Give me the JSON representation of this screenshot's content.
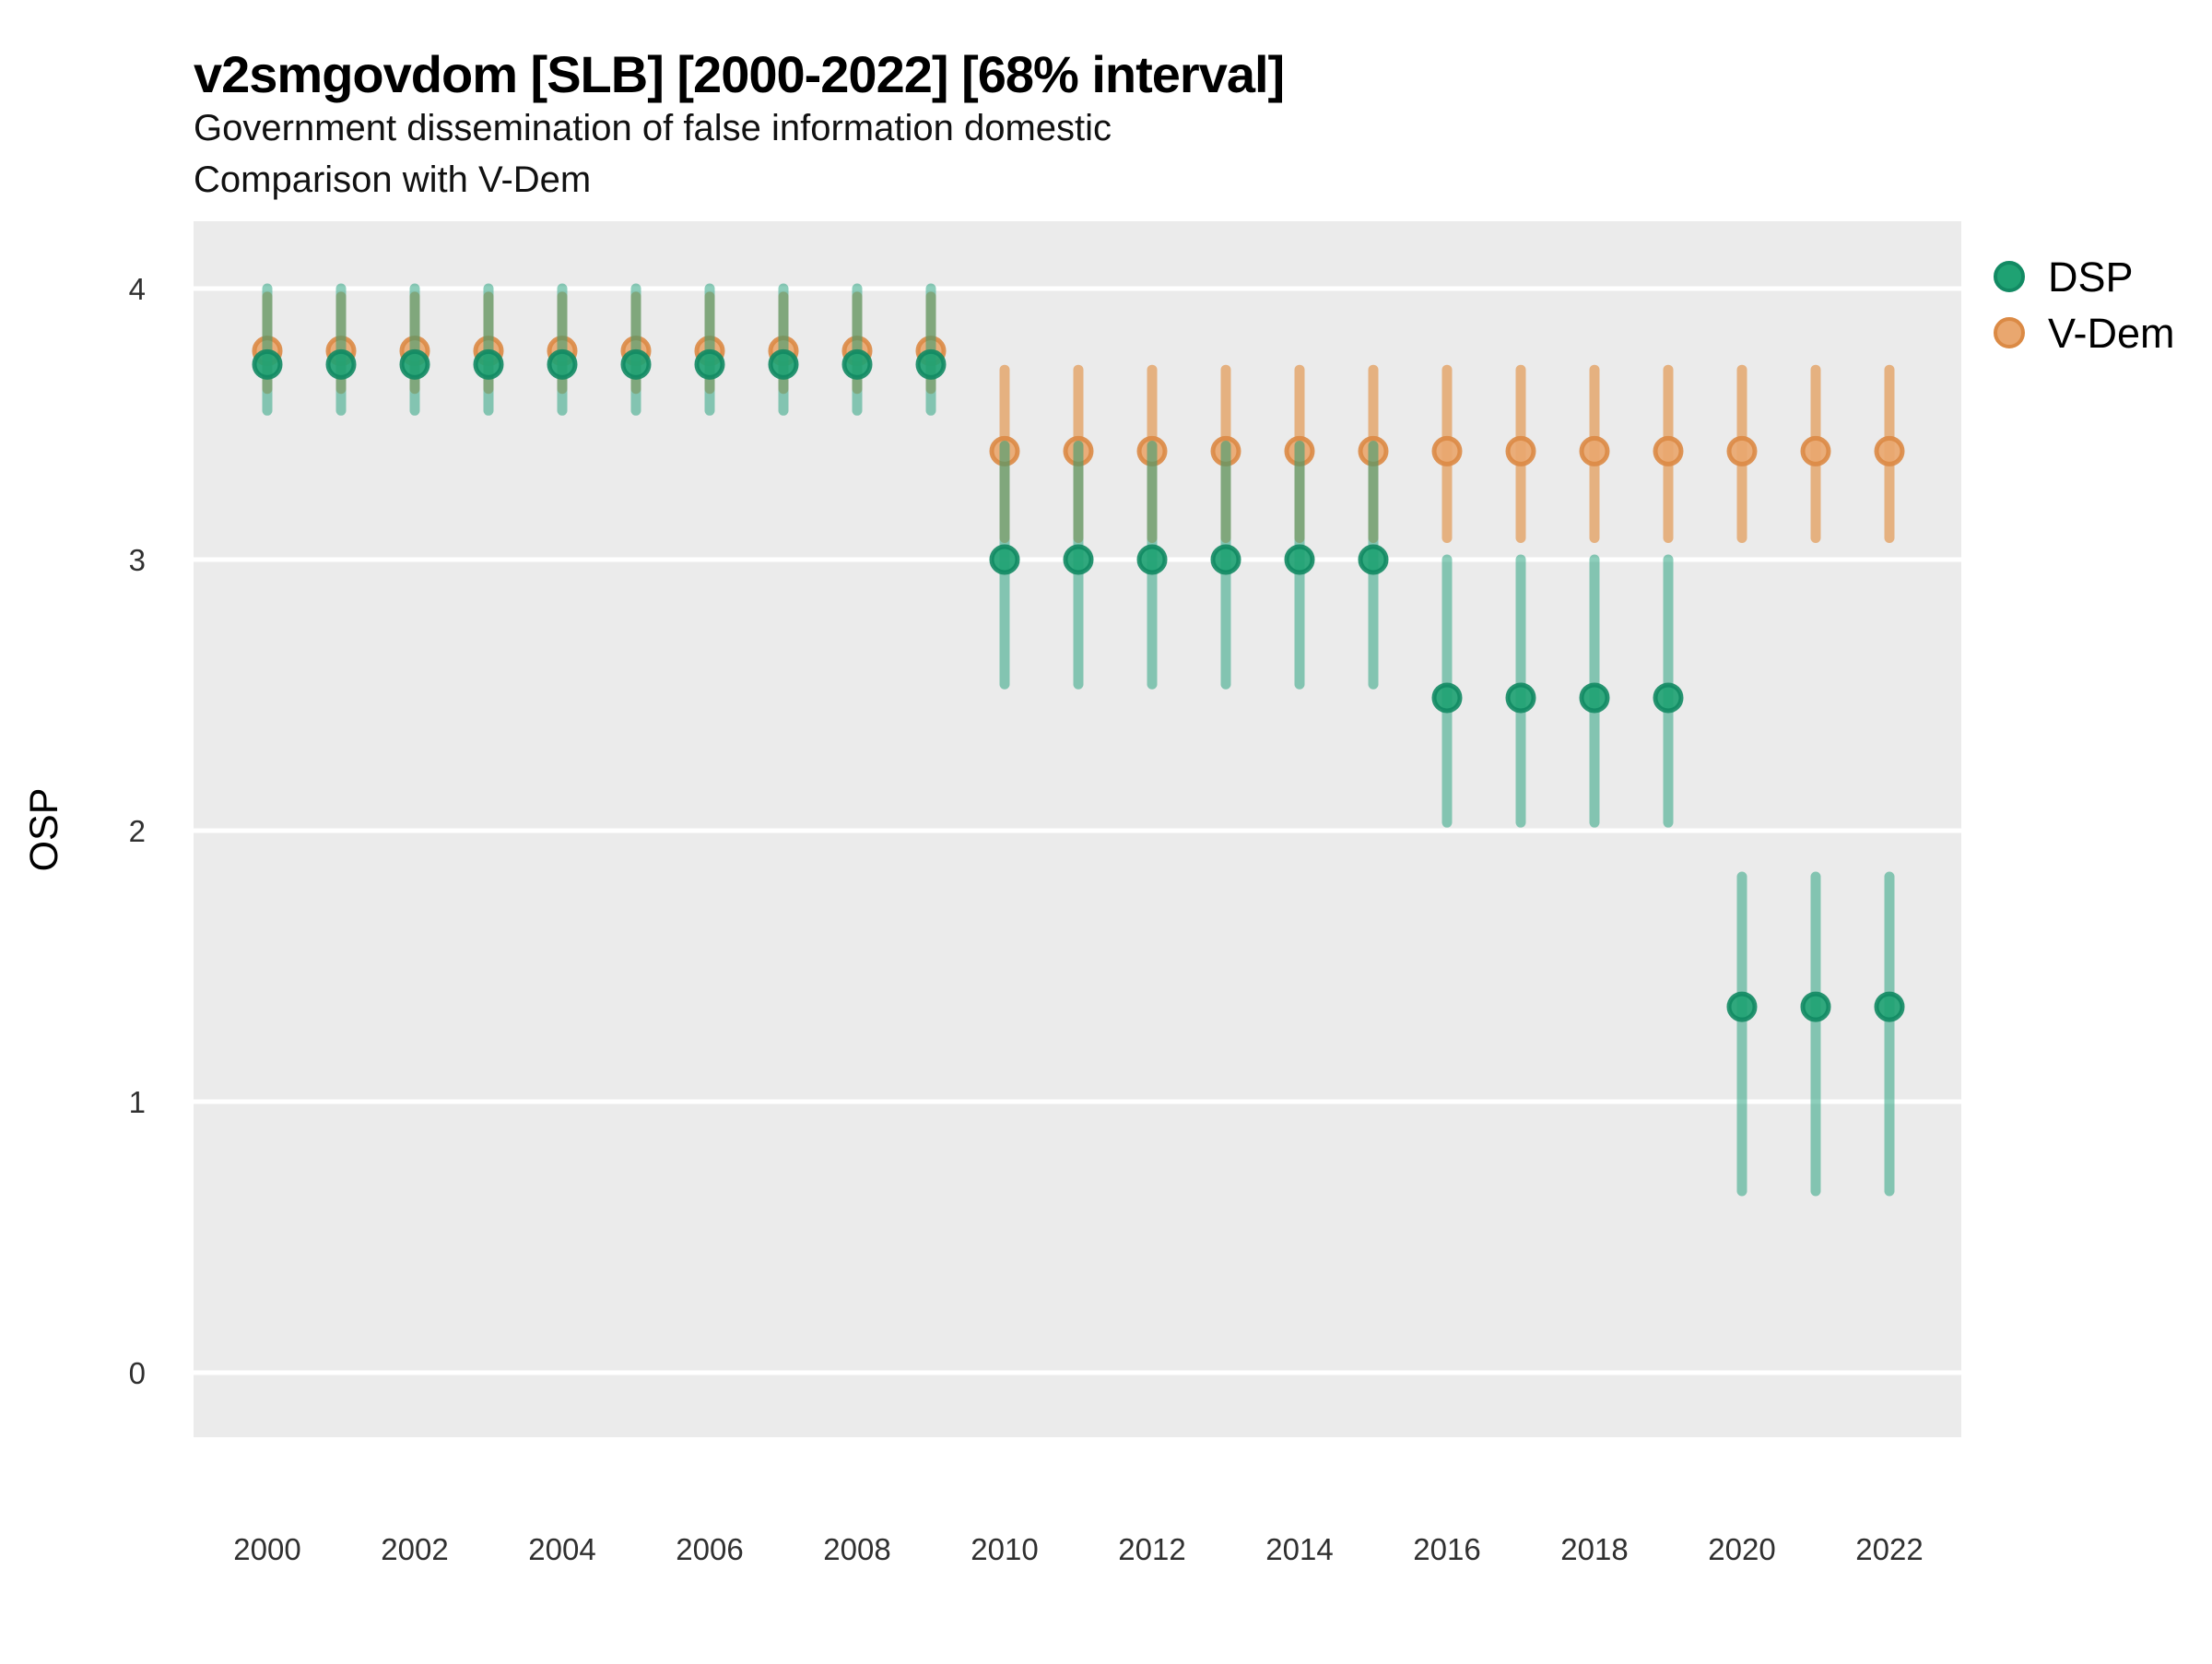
{
  "chart_data": {
    "type": "pointrange",
    "title": "v2smgovdom [SLB] [2000-2022] [68% interval]",
    "subtitle": [
      "Government dissemination of false information domestic",
      "Comparison with V-Dem"
    ],
    "ylabel": "OSP",
    "xlabel": "",
    "interval_level": "68%",
    "ylim": [
      -0.25,
      4.25
    ],
    "yticks": [
      0,
      1,
      2,
      3,
      4
    ],
    "xticks": [
      2000,
      2002,
      2004,
      2006,
      2008,
      2010,
      2012,
      2014,
      2016,
      2018,
      2020,
      2022
    ],
    "grid": "major-horizontal-only",
    "legend_position": "right-top",
    "panel_bg": "#EBEBEB",
    "grid_color": "#FFFFFF",
    "legend": [
      {
        "label": "DSP",
        "marker_fill": "#1FA273",
        "marker_stroke": "#128A63"
      },
      {
        "label": "V-Dem",
        "marker_fill": "#E9A76F",
        "marker_stroke": "#DB8A45"
      }
    ],
    "series": [
      {
        "name": "DSP",
        "point_fill": "#1FA273",
        "point_stroke": "#128A63",
        "bar_color": "rgba(27,158,119,0.5)",
        "points": [
          {
            "year": 2000,
            "value": 3.72,
            "lower": 3.55,
            "upper": 4.0
          },
          {
            "year": 2001,
            "value": 3.72,
            "lower": 3.55,
            "upper": 4.0
          },
          {
            "year": 2002,
            "value": 3.72,
            "lower": 3.55,
            "upper": 4.0
          },
          {
            "year": 2003,
            "value": 3.72,
            "lower": 3.55,
            "upper": 4.0
          },
          {
            "year": 2004,
            "value": 3.72,
            "lower": 3.55,
            "upper": 4.0
          },
          {
            "year": 2005,
            "value": 3.72,
            "lower": 3.55,
            "upper": 4.0
          },
          {
            "year": 2006,
            "value": 3.72,
            "lower": 3.55,
            "upper": 4.0
          },
          {
            "year": 2007,
            "value": 3.72,
            "lower": 3.55,
            "upper": 4.0
          },
          {
            "year": 2008,
            "value": 3.72,
            "lower": 3.55,
            "upper": 4.0
          },
          {
            "year": 2009,
            "value": 3.72,
            "lower": 3.55,
            "upper": 4.0
          },
          {
            "year": 2010,
            "value": 3.0,
            "lower": 2.54,
            "upper": 3.42
          },
          {
            "year": 2011,
            "value": 3.0,
            "lower": 2.54,
            "upper": 3.42
          },
          {
            "year": 2012,
            "value": 3.0,
            "lower": 2.54,
            "upper": 3.42
          },
          {
            "year": 2013,
            "value": 3.0,
            "lower": 2.54,
            "upper": 3.42
          },
          {
            "year": 2014,
            "value": 3.0,
            "lower": 2.54,
            "upper": 3.42
          },
          {
            "year": 2015,
            "value": 3.0,
            "lower": 2.54,
            "upper": 3.42
          },
          {
            "year": 2016,
            "value": 2.49,
            "lower": 2.03,
            "upper": 3.0
          },
          {
            "year": 2017,
            "value": 2.49,
            "lower": 2.03,
            "upper": 3.0
          },
          {
            "year": 2018,
            "value": 2.49,
            "lower": 2.03,
            "upper": 3.0
          },
          {
            "year": 2019,
            "value": 2.49,
            "lower": 2.03,
            "upper": 3.0
          },
          {
            "year": 2020,
            "value": 1.35,
            "lower": 0.67,
            "upper": 1.83
          },
          {
            "year": 2021,
            "value": 1.35,
            "lower": 0.67,
            "upper": 1.83
          },
          {
            "year": 2022,
            "value": 1.35,
            "lower": 0.67,
            "upper": 1.83
          }
        ]
      },
      {
        "name": "V-Dem",
        "point_fill": "#E9A76F",
        "point_stroke": "#DB8A45",
        "bar_color": "rgba(224,130,40,0.55)",
        "points": [
          {
            "year": 2000,
            "value": 3.77,
            "lower": 3.63,
            "upper": 3.97
          },
          {
            "year": 2001,
            "value": 3.77,
            "lower": 3.63,
            "upper": 3.97
          },
          {
            "year": 2002,
            "value": 3.77,
            "lower": 3.63,
            "upper": 3.97
          },
          {
            "year": 2003,
            "value": 3.77,
            "lower": 3.63,
            "upper": 3.97
          },
          {
            "year": 2004,
            "value": 3.77,
            "lower": 3.63,
            "upper": 3.97
          },
          {
            "year": 2005,
            "value": 3.77,
            "lower": 3.63,
            "upper": 3.97
          },
          {
            "year": 2006,
            "value": 3.77,
            "lower": 3.63,
            "upper": 3.97
          },
          {
            "year": 2007,
            "value": 3.77,
            "lower": 3.63,
            "upper": 3.97
          },
          {
            "year": 2008,
            "value": 3.77,
            "lower": 3.63,
            "upper": 3.97
          },
          {
            "year": 2009,
            "value": 3.77,
            "lower": 3.63,
            "upper": 3.97
          },
          {
            "year": 2010,
            "value": 3.4,
            "lower": 3.08,
            "upper": 3.7
          },
          {
            "year": 2011,
            "value": 3.4,
            "lower": 3.08,
            "upper": 3.7
          },
          {
            "year": 2012,
            "value": 3.4,
            "lower": 3.08,
            "upper": 3.7
          },
          {
            "year": 2013,
            "value": 3.4,
            "lower": 3.08,
            "upper": 3.7
          },
          {
            "year": 2014,
            "value": 3.4,
            "lower": 3.08,
            "upper": 3.7
          },
          {
            "year": 2015,
            "value": 3.4,
            "lower": 3.08,
            "upper": 3.7
          },
          {
            "year": 2016,
            "value": 3.4,
            "lower": 3.08,
            "upper": 3.7
          },
          {
            "year": 2017,
            "value": 3.4,
            "lower": 3.08,
            "upper": 3.7
          },
          {
            "year": 2018,
            "value": 3.4,
            "lower": 3.08,
            "upper": 3.7
          },
          {
            "year": 2019,
            "value": 3.4,
            "lower": 3.08,
            "upper": 3.7
          },
          {
            "year": 2020,
            "value": 3.4,
            "lower": 3.08,
            "upper": 3.7
          },
          {
            "year": 2021,
            "value": 3.4,
            "lower": 3.08,
            "upper": 3.7
          },
          {
            "year": 2022,
            "value": 3.4,
            "lower": 3.08,
            "upper": 3.7
          }
        ]
      }
    ]
  }
}
